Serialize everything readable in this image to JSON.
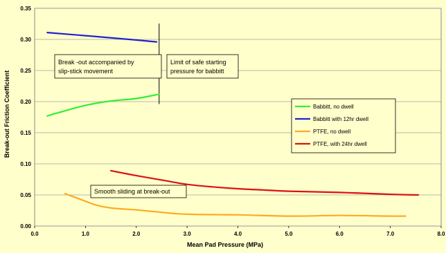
{
  "chart_data": {
    "type": "line",
    "xlabel": "Mean Pad Pressure  (MPa)",
    "ylabel": "Break-out Friction Coefficient",
    "xlim": [
      0,
      8
    ],
    "ylim": [
      0,
      0.35
    ],
    "x_ticks": [
      "0.0",
      "1.0",
      "2.0",
      "3.0",
      "4.0",
      "5.0",
      "6.0",
      "7.0",
      "8.0"
    ],
    "y_ticks": [
      "0.00",
      "0.05",
      "0.10",
      "0.15",
      "0.20",
      "0.25",
      "0.30",
      "0.35"
    ],
    "grid": true,
    "legend_position": "right",
    "series": [
      {
        "name": "Babbitt, no dwell",
        "color": "#33ee33",
        "points": [
          [
            0.25,
            0.177
          ],
          [
            0.5,
            0.183
          ],
          [
            1.0,
            0.194
          ],
          [
            1.5,
            0.201
          ],
          [
            2.0,
            0.205
          ],
          [
            2.45,
            0.212
          ]
        ]
      },
      {
        "name": "Babbitt with 12hr dwell",
        "color": "#2222cc",
        "points": [
          [
            0.25,
            0.311
          ],
          [
            1.0,
            0.306
          ],
          [
            2.0,
            0.299
          ],
          [
            2.4,
            0.296
          ]
        ]
      },
      {
        "name": "PTFE, no dwell",
        "color": "#ffaa22",
        "points": [
          [
            0.6,
            0.052
          ],
          [
            0.9,
            0.043
          ],
          [
            1.2,
            0.034
          ],
          [
            1.5,
            0.029
          ],
          [
            2.0,
            0.026
          ],
          [
            2.5,
            0.022
          ],
          [
            3.0,
            0.019
          ],
          [
            4.0,
            0.018
          ],
          [
            5.0,
            0.016
          ],
          [
            6.0,
            0.017
          ],
          [
            7.0,
            0.016
          ],
          [
            7.3,
            0.016
          ]
        ]
      },
      {
        "name": "PTFE, with 24hr dwell",
        "color": "#dd1111",
        "points": [
          [
            1.5,
            0.089
          ],
          [
            2.0,
            0.081
          ],
          [
            2.5,
            0.074
          ],
          [
            3.0,
            0.067
          ],
          [
            3.5,
            0.063
          ],
          [
            4.0,
            0.06
          ],
          [
            4.5,
            0.058
          ],
          [
            5.0,
            0.056
          ],
          [
            6.0,
            0.054
          ],
          [
            7.0,
            0.051
          ],
          [
            7.55,
            0.05
          ]
        ]
      }
    ],
    "reference_line": {
      "x": 2.45,
      "y_range": [
        0.196,
        0.31
      ]
    },
    "annotations": [
      {
        "lines": [
          "Break -out accompanied by",
          "slip-stick movement"
        ]
      },
      {
        "lines": [
          "Limit of safe starting",
          "pressure for babbitt"
        ]
      },
      {
        "lines": [
          "Smooth sliding at break-out"
        ]
      }
    ]
  }
}
